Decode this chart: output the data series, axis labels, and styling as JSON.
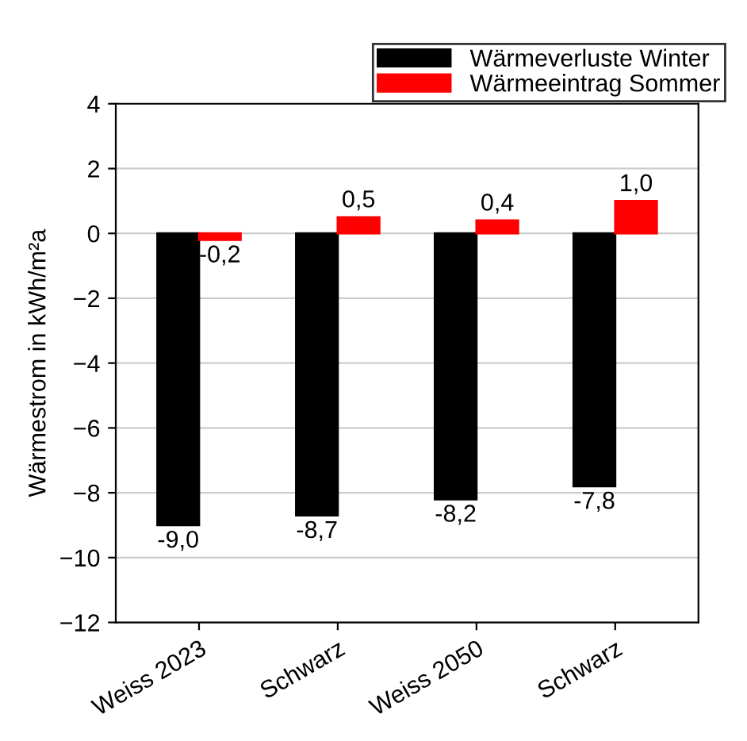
{
  "chart_data": {
    "type": "bar",
    "ylabel": "Wärmestrom in kWh/m²a",
    "categories": [
      "Weiss 2023",
      "Schwarz",
      "Weiss 2050",
      "Schwarz"
    ],
    "series": [
      {
        "name": "Wärmeverluste Winter",
        "color": "#000000",
        "values": [
          -9.0,
          -8.7,
          -8.2,
          -7.8
        ],
        "value_labels": [
          "-9,0",
          "-8,7",
          "-8,2",
          "-7,8"
        ]
      },
      {
        "name": "Wärmeeintrag Sommer",
        "color": "#ff0000",
        "values": [
          -0.2,
          0.5,
          0.4,
          1.0
        ],
        "value_labels": [
          "-0,2",
          "0,5",
          "0,4",
          "1,0"
        ]
      }
    ],
    "ylim": [
      -12,
      4
    ],
    "yticks": [
      {
        "value": -12,
        "label": "−12"
      },
      {
        "value": -10,
        "label": "−10"
      },
      {
        "value": -8,
        "label": "−8"
      },
      {
        "value": -6,
        "label": "−6"
      },
      {
        "value": -4,
        "label": "−4"
      },
      {
        "value": -2,
        "label": "−2"
      },
      0,
      2,
      4
    ],
    "grid": "y",
    "legend": "top right"
  }
}
